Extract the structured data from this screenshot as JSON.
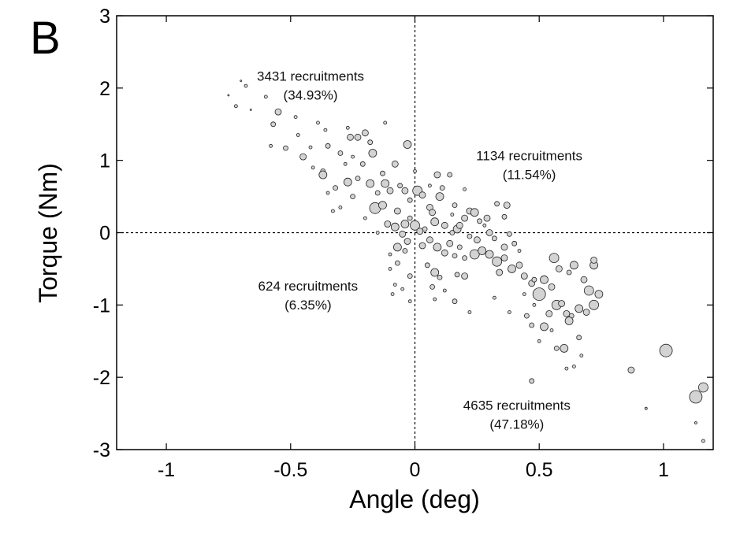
{
  "panel_label": "B",
  "chart_data": {
    "type": "scatter",
    "title": "",
    "xlabel": "Angle (deg)",
    "ylabel": "Torque (Nm)",
    "xlim": [
      -1.2,
      1.2
    ],
    "ylim": [
      -3,
      3
    ],
    "xticks": [
      -1,
      -0.5,
      0,
      0.5,
      1
    ],
    "xtick_labels": [
      "-1",
      "-0.5",
      "0",
      "0.5",
      "1"
    ],
    "yticks": [
      -3,
      -2,
      -1,
      0,
      1,
      2,
      3
    ],
    "ytick_labels": [
      "-3",
      "-2",
      "-1",
      "0",
      "1",
      "2",
      "3"
    ],
    "grid": false,
    "reference_lines": {
      "x": 0,
      "y": 0,
      "style": "dashed"
    },
    "marker_color": "#d3d3d3",
    "marker_edge_color": "#222222",
    "annotations": [
      {
        "id": "q2",
        "lines": [
          "3431 recruitments",
          "(34.93%)"
        ],
        "x": -0.42,
        "y": 2.1
      },
      {
        "id": "q1",
        "lines": [
          "1134 recruitments",
          "(11.54%)"
        ],
        "x": 0.46,
        "y": 1.0
      },
      {
        "id": "q3",
        "lines": [
          "624 recruitments",
          "(6.35%)"
        ],
        "x": -0.43,
        "y": -0.8
      },
      {
        "id": "q4",
        "lines": [
          "4635 recruitments",
          "(47.18%)"
        ],
        "x": 0.41,
        "y": -2.45
      }
    ],
    "points": [
      {
        "x": -0.7,
        "y": 2.1,
        "s": 1
      },
      {
        "x": -0.68,
        "y": 2.03,
        "s": 2
      },
      {
        "x": -0.75,
        "y": 1.9,
        "s": 1
      },
      {
        "x": -0.72,
        "y": 1.75,
        "s": 2
      },
      {
        "x": -0.66,
        "y": 1.7,
        "s": 1
      },
      {
        "x": -0.6,
        "y": 1.88,
        "s": 2
      },
      {
        "x": -0.55,
        "y": 1.67,
        "s": 4
      },
      {
        "x": -0.57,
        "y": 1.5,
        "s": 3
      },
      {
        "x": -0.58,
        "y": 1.2,
        "s": 2
      },
      {
        "x": -0.52,
        "y": 1.17,
        "s": 3
      },
      {
        "x": -0.48,
        "y": 1.6,
        "s": 2
      },
      {
        "x": -0.47,
        "y": 1.35,
        "s": 2
      },
      {
        "x": -0.45,
        "y": 1.05,
        "s": 4
      },
      {
        "x": -0.42,
        "y": 1.18,
        "s": 2
      },
      {
        "x": -0.39,
        "y": 1.52,
        "s": 2
      },
      {
        "x": -0.36,
        "y": 1.42,
        "s": 2
      },
      {
        "x": -0.35,
        "y": 1.2,
        "s": 3
      },
      {
        "x": -0.37,
        "y": 0.85,
        "s": 3
      },
      {
        "x": -0.37,
        "y": 0.8,
        "s": 5
      },
      {
        "x": -0.32,
        "y": 0.62,
        "s": 3
      },
      {
        "x": -0.3,
        "y": 1.1,
        "s": 3
      },
      {
        "x": -0.28,
        "y": 0.95,
        "s": 2
      },
      {
        "x": -0.27,
        "y": 1.45,
        "s": 2
      },
      {
        "x": -0.26,
        "y": 1.32,
        "s": 4
      },
      {
        "x": -0.23,
        "y": 1.32,
        "s": 4
      },
      {
        "x": -0.2,
        "y": 1.38,
        "s": 4
      },
      {
        "x": -0.18,
        "y": 1.25,
        "s": 3
      },
      {
        "x": -0.17,
        "y": 1.1,
        "s": 5
      },
      {
        "x": -0.21,
        "y": 0.95,
        "s": 3
      },
      {
        "x": -0.18,
        "y": 0.68,
        "s": 5
      },
      {
        "x": -0.23,
        "y": 0.75,
        "s": 3
      },
      {
        "x": -0.27,
        "y": 0.7,
        "s": 5
      },
      {
        "x": -0.25,
        "y": 0.5,
        "s": 3
      },
      {
        "x": -0.3,
        "y": 0.35,
        "s": 2
      },
      {
        "x": -0.15,
        "y": 0.55,
        "s": 3
      },
      {
        "x": -0.13,
        "y": 0.82,
        "s": 3
      },
      {
        "x": -0.12,
        "y": 0.68,
        "s": 5
      },
      {
        "x": -0.1,
        "y": 0.58,
        "s": 4
      },
      {
        "x": -0.08,
        "y": 0.95,
        "s": 4
      },
      {
        "x": -0.06,
        "y": 0.65,
        "s": 3
      },
      {
        "x": -0.04,
        "y": 0.58,
        "s": 4
      },
      {
        "x": -0.02,
        "y": 0.45,
        "s": 3
      },
      {
        "x": -0.12,
        "y": 1.52,
        "s": 2
      },
      {
        "x": -0.03,
        "y": 1.22,
        "s": 5
      },
      {
        "x": -0.16,
        "y": 0.34,
        "s": 7
      },
      {
        "x": -0.13,
        "y": 0.38,
        "s": 5
      },
      {
        "x": -0.07,
        "y": 0.3,
        "s": 4
      },
      {
        "x": -0.11,
        "y": 0.12,
        "s": 4
      },
      {
        "x": -0.08,
        "y": 0.08,
        "s": 5
      },
      {
        "x": -0.04,
        "y": 0.12,
        "s": 5
      },
      {
        "x": -0.02,
        "y": 0.2,
        "s": 3
      },
      {
        "x": 0.01,
        "y": 0.58,
        "s": 6
      },
      {
        "x": 0.03,
        "y": 0.52,
        "s": 4
      },
      {
        "x": 0.06,
        "y": 0.35,
        "s": 4
      },
      {
        "x": 0.07,
        "y": 0.28,
        "s": 4
      },
      {
        "x": 0.09,
        "y": 0.8,
        "s": 4
      },
      {
        "x": 0.11,
        "y": 0.62,
        "s": 3
      },
      {
        "x": 0.14,
        "y": 0.8,
        "s": 3
      },
      {
        "x": 0.1,
        "y": 0.5,
        "s": 5
      },
      {
        "x": 0.16,
        "y": 0.38,
        "s": 3
      },
      {
        "x": 0.0,
        "y": 0.1,
        "s": 6
      },
      {
        "x": 0.02,
        "y": 0.02,
        "s": 4
      },
      {
        "x": 0.04,
        "y": 0.05,
        "s": 3
      },
      {
        "x": 0.08,
        "y": 0.15,
        "s": 5
      },
      {
        "x": 0.12,
        "y": 0.1,
        "s": 4
      },
      {
        "x": 0.15,
        "y": 0.0,
        "s": 3
      },
      {
        "x": 0.17,
        "y": 0.05,
        "s": 5
      },
      {
        "x": 0.18,
        "y": 0.1,
        "s": 4
      },
      {
        "x": 0.2,
        "y": 0.2,
        "s": 4
      },
      {
        "x": 0.22,
        "y": 0.3,
        "s": 4
      },
      {
        "x": 0.24,
        "y": 0.28,
        "s": 5
      },
      {
        "x": 0.26,
        "y": 0.16,
        "s": 3
      },
      {
        "x": 0.29,
        "y": 0.2,
        "s": 4
      },
      {
        "x": 0.33,
        "y": 0.4,
        "s": 3
      },
      {
        "x": 0.37,
        "y": 0.38,
        "s": 4
      },
      {
        "x": 0.36,
        "y": 0.22,
        "s": 3
      },
      {
        "x": 0.3,
        "y": 0.0,
        "s": 4
      },
      {
        "x": 0.38,
        "y": -0.02,
        "s": 3
      },
      {
        "x": -0.05,
        "y": -0.02,
        "s": 4
      },
      {
        "x": -0.03,
        "y": -0.12,
        "s": 4
      },
      {
        "x": -0.07,
        "y": -0.2,
        "s": 5
      },
      {
        "x": -0.04,
        "y": -0.25,
        "s": 3
      },
      {
        "x": 0.03,
        "y": -0.18,
        "s": 4
      },
      {
        "x": 0.06,
        "y": -0.1,
        "s": 4
      },
      {
        "x": 0.09,
        "y": -0.2,
        "s": 5
      },
      {
        "x": 0.12,
        "y": -0.28,
        "s": 4
      },
      {
        "x": 0.14,
        "y": -0.15,
        "s": 4
      },
      {
        "x": 0.16,
        "y": -0.32,
        "s": 3
      },
      {
        "x": 0.18,
        "y": -0.2,
        "s": 3
      },
      {
        "x": 0.2,
        "y": -0.35,
        "s": 3
      },
      {
        "x": 0.05,
        "y": -0.45,
        "s": 3
      },
      {
        "x": 0.08,
        "y": -0.55,
        "s": 5
      },
      {
        "x": 0.1,
        "y": -0.62,
        "s": 3
      },
      {
        "x": 0.12,
        "y": -0.8,
        "s": 2
      },
      {
        "x": 0.17,
        "y": -0.58,
        "s": 3
      },
      {
        "x": 0.2,
        "y": -0.6,
        "s": 4
      },
      {
        "x": 0.24,
        "y": -0.3,
        "s": 6
      },
      {
        "x": 0.27,
        "y": -0.25,
        "s": 5
      },
      {
        "x": 0.3,
        "y": -0.3,
        "s": 5
      },
      {
        "x": 0.33,
        "y": -0.4,
        "s": 6
      },
      {
        "x": 0.36,
        "y": -0.35,
        "s": 4
      },
      {
        "x": 0.34,
        "y": -0.55,
        "s": 4
      },
      {
        "x": 0.39,
        "y": -0.5,
        "s": 5
      },
      {
        "x": 0.42,
        "y": -0.45,
        "s": 4
      },
      {
        "x": 0.44,
        "y": -0.6,
        "s": 4
      },
      {
        "x": 0.47,
        "y": -0.7,
        "s": 4
      },
      {
        "x": 0.5,
        "y": -0.85,
        "s": 8
      },
      {
        "x": 0.48,
        "y": -0.65,
        "s": 3
      },
      {
        "x": 0.52,
        "y": -0.65,
        "s": 5
      },
      {
        "x": 0.55,
        "y": -0.75,
        "s": 4
      },
      {
        "x": 0.58,
        "y": -0.5,
        "s": 4
      },
      {
        "x": 0.56,
        "y": -0.35,
        "s": 6
      },
      {
        "x": 0.62,
        "y": -0.55,
        "s": 3
      },
      {
        "x": 0.64,
        "y": -0.45,
        "s": 5
      },
      {
        "x": 0.68,
        "y": -0.65,
        "s": 4
      },
      {
        "x": 0.7,
        "y": -0.8,
        "s": 6
      },
      {
        "x": 0.72,
        "y": -0.45,
        "s": 5
      },
      {
        "x": 0.72,
        "y": -0.38,
        "s": 4
      },
      {
        "x": 0.57,
        "y": -1.0,
        "s": 6
      },
      {
        "x": 0.59,
        "y": -0.98,
        "s": 4
      },
      {
        "x": 0.61,
        "y": -1.12,
        "s": 4
      },
      {
        "x": 0.63,
        "y": -1.15,
        "s": 3
      },
      {
        "x": 0.66,
        "y": -1.05,
        "s": 5
      },
      {
        "x": 0.69,
        "y": -1.1,
        "s": 4
      },
      {
        "x": 0.72,
        "y": -1.0,
        "s": 6
      },
      {
        "x": 0.74,
        "y": -0.85,
        "s": 5
      },
      {
        "x": 0.54,
        "y": -1.12,
        "s": 4
      },
      {
        "x": 0.52,
        "y": -1.3,
        "s": 5
      },
      {
        "x": 0.47,
        "y": -1.28,
        "s": 3
      },
      {
        "x": 0.45,
        "y": -1.15,
        "s": 3
      },
      {
        "x": 0.62,
        "y": -1.22,
        "s": 5
      },
      {
        "x": 0.6,
        "y": -1.6,
        "s": 5
      },
      {
        "x": 0.66,
        "y": -1.45,
        "s": 3
      },
      {
        "x": 0.64,
        "y": -1.85,
        "s": 2
      },
      {
        "x": 0.61,
        "y": -1.88,
        "s": 2
      },
      {
        "x": 0.57,
        "y": -1.6,
        "s": 3
      },
      {
        "x": 0.47,
        "y": -2.05,
        "s": 3
      },
      {
        "x": 0.38,
        "y": -1.1,
        "s": 2
      },
      {
        "x": 0.32,
        "y": -0.9,
        "s": 2
      },
      {
        "x": 0.22,
        "y": -1.1,
        "s": 2
      },
      {
        "x": 0.16,
        "y": -0.95,
        "s": 3
      },
      {
        "x": 0.07,
        "y": -0.75,
        "s": 3
      },
      {
        "x": 0.08,
        "y": -0.92,
        "s": 2
      },
      {
        "x": -0.07,
        "y": -0.42,
        "s": 3
      },
      {
        "x": -0.02,
        "y": -0.6,
        "s": 3
      },
      {
        "x": -0.05,
        "y": -0.78,
        "s": 2
      },
      {
        "x": -0.08,
        "y": -0.72,
        "s": 2
      },
      {
        "x": -0.1,
        "y": -0.5,
        "s": 2
      },
      {
        "x": -0.09,
        "y": -0.85,
        "s": 2
      },
      {
        "x": -0.02,
        "y": -0.95,
        "s": 2
      },
      {
        "x": 0.32,
        "y": -0.08,
        "s": 3
      },
      {
        "x": 0.36,
        "y": -0.2,
        "s": 4
      },
      {
        "x": 0.4,
        "y": -0.15,
        "s": 3
      },
      {
        "x": 0.25,
        "y": -0.1,
        "s": 4
      },
      {
        "x": 0.22,
        "y": -0.05,
        "s": 3
      },
      {
        "x": 0.87,
        "y": -1.9,
        "s": 4
      },
      {
        "x": 1.01,
        "y": -1.63,
        "s": 8
      },
      {
        "x": 1.13,
        "y": -2.27,
        "s": 8
      },
      {
        "x": 1.16,
        "y": -2.14,
        "s": 6
      },
      {
        "x": 0.93,
        "y": -2.43,
        "s": 1.5
      },
      {
        "x": 1.13,
        "y": -2.63,
        "s": 1.5
      },
      {
        "x": 1.16,
        "y": -2.88,
        "s": 2
      },
      {
        "x": -0.41,
        "y": 0.9,
        "s": 2
      },
      {
        "x": -0.33,
        "y": 0.3,
        "s": 2
      },
      {
        "x": -0.2,
        "y": 0.2,
        "s": 2
      },
      {
        "x": -0.15,
        "y": 0.0,
        "s": 2
      },
      {
        "x": -0.1,
        "y": -0.3,
        "s": 2
      },
      {
        "x": 0.0,
        "y": 0.85,
        "s": 2
      },
      {
        "x": 0.15,
        "y": 0.25,
        "s": 2
      },
      {
        "x": 0.28,
        "y": 0.1,
        "s": 2
      },
      {
        "x": 0.42,
        "y": -0.25,
        "s": 2
      },
      {
        "x": 0.48,
        "y": -1.0,
        "s": 2
      },
      {
        "x": 0.55,
        "y": -1.35,
        "s": 2
      },
      {
        "x": 0.67,
        "y": -1.7,
        "s": 2
      },
      {
        "x": 0.5,
        "y": -1.5,
        "s": 2
      },
      {
        "x": -0.25,
        "y": 1.05,
        "s": 2
      },
      {
        "x": -0.35,
        "y": 0.55,
        "s": 2
      },
      {
        "x": 0.06,
        "y": 0.65,
        "s": 2
      },
      {
        "x": 0.2,
        "y": 0.6,
        "s": 2
      },
      {
        "x": 0.44,
        "y": -0.85,
        "s": 2
      }
    ]
  }
}
